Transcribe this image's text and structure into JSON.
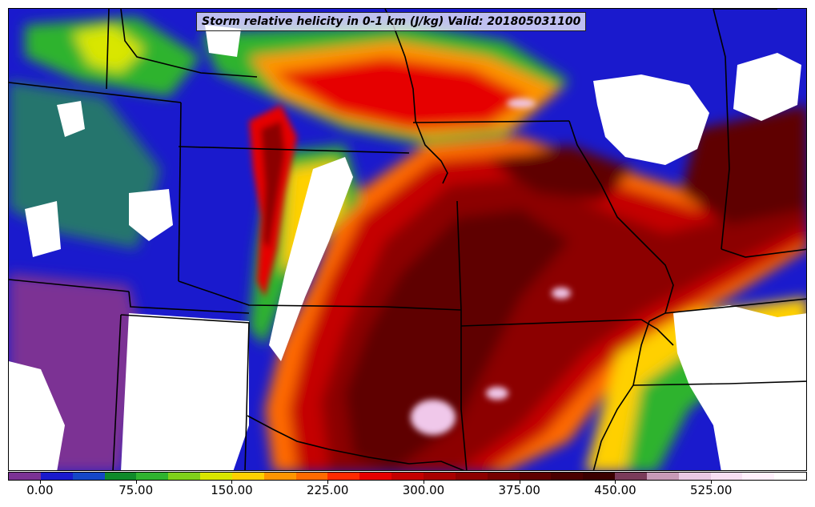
{
  "title": "Storm relative helicity in 0-1 km (J/kg) Valid: 201805031100",
  "colorbar": {
    "colors": [
      "#7b3294",
      "#1a1acd",
      "#1447c7",
      "#0f8a2a",
      "#2fb32f",
      "#7fd01a",
      "#d9e600",
      "#ffd000",
      "#ff9500",
      "#ff6a00",
      "#ff2a00",
      "#e60000",
      "#c40000",
      "#a80000",
      "#8c0000",
      "#740000",
      "#5e0000",
      "#4a0000",
      "#3a0000",
      "#7a3b5a",
      "#c89ab8",
      "#e8c8e4",
      "#f7dff3",
      "#fff0fc",
      "#ffffff"
    ],
    "tick_labels": [
      "0.00",
      "75.00",
      "150.00",
      "225.00",
      "300.00",
      "375.00",
      "450.00",
      "525.00"
    ],
    "tick_values": [
      0,
      75,
      150,
      225,
      300,
      375,
      450,
      525
    ],
    "min": -25,
    "max": 600
  }
}
